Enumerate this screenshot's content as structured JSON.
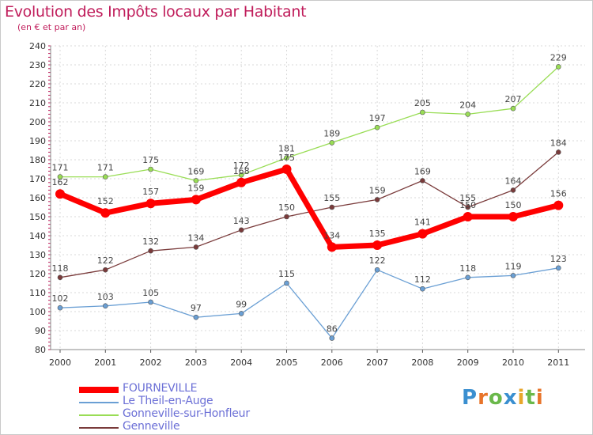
{
  "header": {
    "title": "Evolution des Impôts locaux par Habitant",
    "subtitle": "(en € et par an)"
  },
  "logo": {
    "text": "Proxiti",
    "letters": [
      {
        "ch": "P",
        "color": "#3a8fd0"
      },
      {
        "ch": "r",
        "color": "#e8742a"
      },
      {
        "ch": "o",
        "color": "#6ab84a"
      },
      {
        "ch": "x",
        "color": "#3a8fd0"
      },
      {
        "ch": "i",
        "color": "#e8a62a"
      },
      {
        "ch": "t",
        "color": "#6ab84a"
      },
      {
        "ch": "i",
        "color": "#e8742a"
      }
    ]
  },
  "chart_data": {
    "type": "line",
    "title": "Evolution des Impôts locaux par Habitant",
    "subtitle": "(en € et par an)",
    "xlabel": "",
    "ylabel": "",
    "ylim": [
      80,
      240
    ],
    "yticks": [
      80,
      90,
      100,
      110,
      120,
      130,
      140,
      150,
      160,
      170,
      180,
      190,
      200,
      210,
      220,
      230,
      240
    ],
    "x": [
      "2000",
      "2001",
      "2002",
      "2003",
      "2004",
      "2005",
      "2006",
      "2007",
      "2008",
      "2009",
      "2010",
      "2011"
    ],
    "grid": true,
    "legend_position": "bottom-left",
    "series": [
      {
        "name": "Gonneville-sur-Honfleur",
        "color": "#99dd55",
        "values": [
          171,
          171,
          175,
          169,
          172,
          181,
          189,
          197,
          205,
          204,
          207,
          229
        ]
      },
      {
        "name": "Genneville",
        "color": "#7a3b3b",
        "values": [
          118,
          122,
          132,
          134,
          143,
          150,
          155,
          159,
          169,
          155,
          164,
          184
        ]
      },
      {
        "name": "Le Theil-en-Auge",
        "color": "#6a9fd4",
        "values": [
          102,
          103,
          105,
          97,
          99,
          115,
          86,
          122,
          112,
          118,
          119,
          123
        ]
      },
      {
        "name": "FOURNEVILLE",
        "color": "#ff0000",
        "values": [
          162,
          152,
          157,
          159,
          168,
          175,
          134,
          135,
          141,
          150,
          150,
          156
        ]
      }
    ],
    "legend": [
      "FOURNEVILLE",
      "Le Theil-en-Auge",
      "Gonneville-sur-Honfleur",
      "Genneville"
    ]
  }
}
